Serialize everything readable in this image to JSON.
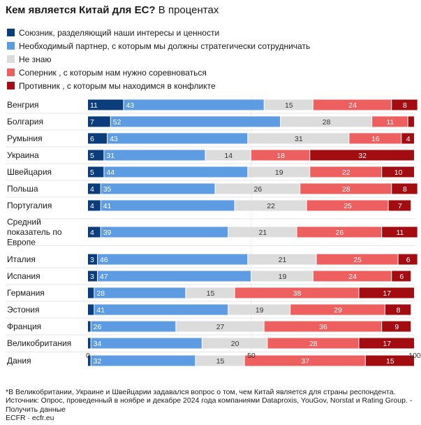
{
  "title": {
    "bold": "Кем является Китай для ЕС?",
    "regular": "В процентах"
  },
  "chart_data": {
    "type": "bar",
    "orientation": "horizontal",
    "stacked": true,
    "xlim": [
      0,
      100
    ],
    "ticks": [
      "0",
      "50",
      "100"
    ],
    "grid": true,
    "legend_position": "top-left",
    "categories": [
      "Венгрия",
      "Болгария",
      "Румыния",
      "Украина",
      "Швейцария",
      "Польша",
      "Португалия",
      "Средний показатель по Европе",
      "Италия",
      "Испания",
      "Германия",
      "Эстония",
      "Франция",
      "Великобритания",
      "Дания"
    ],
    "series": [
      {
        "name": "Союзник, разделяющий наши интересы и ценности",
        "color": "#0b3c7c",
        "values": [
          11,
          7,
          6,
          5,
          5,
          4,
          4,
          4,
          3,
          3,
          2,
          2,
          1,
          1,
          1
        ]
      },
      {
        "name": "Необходимый партнер, с которым мы должны стратегически сотрудничать",
        "color": "#5d9be3",
        "values": [
          43,
          52,
          43,
          31,
          44,
          35,
          41,
          39,
          46,
          47,
          28,
          41,
          26,
          34,
          32
        ]
      },
      {
        "name": "Не знаю",
        "color": "#dcdcdc",
        "values": [
          15,
          28,
          31,
          14,
          19,
          26,
          22,
          21,
          21,
          19,
          15,
          19,
          27,
          20,
          15
        ]
      },
      {
        "name": "Соперник , с которым нам нужно соревноваться",
        "color": "#ee5f5f",
        "values": [
          24,
          11,
          16,
          18,
          22,
          28,
          25,
          26,
          25,
          24,
          38,
          29,
          36,
          28,
          37
        ]
      },
      {
        "name": "Противник , с которым мы находимся в конфликте",
        "color": "#a30d12",
        "values": [
          8,
          2,
          4,
          32,
          10,
          8,
          7,
          11,
          6,
          6,
          17,
          8,
          9,
          17,
          15
        ]
      }
    ],
    "labels": [
      [
        "11",
        "43",
        "15",
        "24",
        "8"
      ],
      [
        "7",
        "52",
        "28",
        "11",
        ""
      ],
      [
        "6",
        "43",
        "31",
        "16",
        "4"
      ],
      [
        "5",
        "31",
        "14",
        "18",
        "32"
      ],
      [
        "5",
        "44",
        "19",
        "22",
        "10"
      ],
      [
        "4",
        "35",
        "26",
        "28",
        "8"
      ],
      [
        "4",
        "41",
        "22",
        "25",
        "7"
      ],
      [
        "4",
        "39",
        "21",
        "26",
        "11"
      ],
      [
        "3",
        "46",
        "21",
        "25",
        "6"
      ],
      [
        "3",
        "47",
        "19",
        "24",
        "6"
      ],
      [
        "",
        "28",
        "15",
        "38",
        "17"
      ],
      [
        "",
        "41",
        "19",
        "29",
        "8"
      ],
      [
        "",
        "26",
        "27",
        "36",
        "9"
      ],
      [
        "",
        "34",
        "20",
        "28",
        "17"
      ],
      [
        "",
        "32",
        "15",
        "37",
        "15"
      ]
    ]
  },
  "footnote": "*В Великобритании, Украине и Швейцарии задавался вопрос о том, чем Китай является для страны респондента.",
  "source": "Источник: Опрос, проведенный в ноябре и декабре 2024 года компаниями Dataproxis, YouGov, Norstat и Rating Group. - Получить данные",
  "credit": "ECFR · ecfr.eu"
}
